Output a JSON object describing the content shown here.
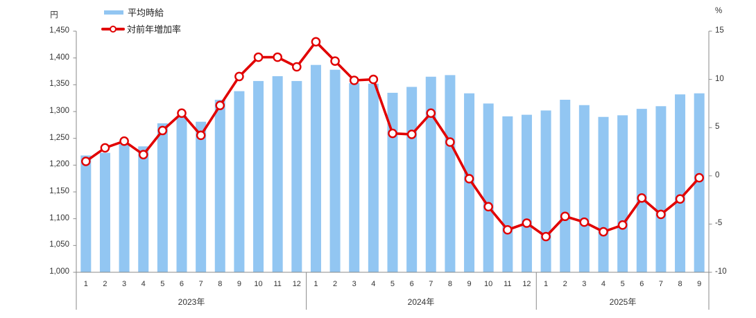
{
  "chart_data": {
    "type": "bar+line combo",
    "title": "",
    "legend": [
      {
        "label": "平均時給",
        "type": "bar",
        "color": "#92c6f2"
      },
      {
        "label": "対前年増加率",
        "type": "line",
        "color": "#e10000",
        "marker": "open-circle"
      }
    ],
    "left_axis": {
      "unit": "円",
      "min": 1000,
      "max": 1450,
      "step": 50,
      "tick_labels": [
        "1,000",
        "1,050",
        "1,100",
        "1,150",
        "1,200",
        "1,250",
        "1,300",
        "1,350",
        "1,400",
        "1,450"
      ],
      "tick_values": [
        1000,
        1050,
        1100,
        1150,
        1200,
        1250,
        1300,
        1350,
        1400,
        1450
      ]
    },
    "right_axis": {
      "unit": "%",
      "min": -10,
      "max": 15,
      "step": 5,
      "tick_labels": [
        "-10",
        "-5",
        "0",
        "5",
        "10",
        "15"
      ],
      "tick_values": [
        -10,
        -5,
        0,
        5,
        10,
        15
      ]
    },
    "grid": "off",
    "legend_position": "top-left",
    "groups": [
      {
        "year": "2023年",
        "months": [
          "1",
          "2",
          "3",
          "4",
          "5",
          "6",
          "7",
          "8",
          "9",
          "10",
          "11",
          "12"
        ],
        "avg_wage": [
          1218,
          1223,
          1239,
          1235,
          1278,
          1292,
          1281,
          1322,
          1338,
          1357,
          1366,
          1357
        ],
        "yoy_pct": [
          1.5,
          2.9,
          3.6,
          2.2,
          4.7,
          6.5,
          4.2,
          7.3,
          10.3,
          12.3,
          12.3,
          11.3
        ]
      },
      {
        "year": "2024年",
        "months": [
          "1",
          "2",
          "3",
          "4",
          "5",
          "6",
          "7",
          "8",
          "9",
          "10",
          "11",
          "12"
        ],
        "avg_wage": [
          1387,
          1378,
          1353,
          1352,
          1335,
          1346,
          1365,
          1368,
          1334,
          1315,
          1291,
          1294
        ],
        "yoy_pct": [
          13.9,
          11.9,
          9.9,
          10.0,
          4.4,
          4.3,
          6.5,
          3.5,
          -0.3,
          -3.2,
          -5.6,
          -4.9
        ]
      },
      {
        "year": "2025年",
        "months": [
          "1",
          "2",
          "3",
          "4",
          "5",
          "6",
          "7",
          "8",
          "9"
        ],
        "avg_wage": [
          1302,
          1322,
          1312,
          1290,
          1293,
          1305,
          1310,
          1332,
          1334
        ],
        "yoy_pct": [
          -6.3,
          -4.2,
          -4.8,
          -5.8,
          -5.1,
          -2.3,
          -4.0,
          -2.4,
          -0.2
        ]
      }
    ],
    "colors": {
      "bar": "#92c6f2",
      "line": "#e10000",
      "marker_fill": "#ffffff",
      "axis": "#8a8a8a",
      "text": "#333333"
    }
  }
}
